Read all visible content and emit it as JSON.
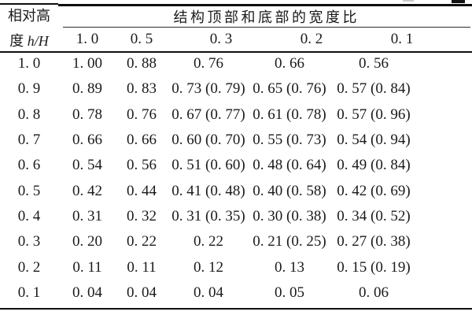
{
  "colors": {
    "background": "#ffffff",
    "text": "#1a1a1a",
    "rule": "#0e0e0e"
  },
  "table": {
    "corner_header": {
      "line1": "相对高",
      "line2_prefix": "度",
      "line2_math": "h/H"
    },
    "spanner": "结构顶部和底部的宽度比",
    "sub_headers": [
      "1. 0",
      "0. 5",
      "0. 3",
      "0. 2",
      "0. 1"
    ],
    "rows": [
      {
        "label": "1. 0",
        "values": [
          "1. 00",
          "0. 88",
          "0. 76",
          "0. 66",
          "0. 56"
        ]
      },
      {
        "label": "0. 9",
        "values": [
          "0. 89",
          "0. 83",
          "0. 73 (0. 79)",
          "0. 65 (0. 76)",
          "0. 57 (0. 84)"
        ]
      },
      {
        "label": "0. 8",
        "values": [
          "0. 78",
          "0. 76",
          "0. 67 (0. 77)",
          "0. 61 (0. 78)",
          "0. 57 (0. 96)"
        ]
      },
      {
        "label": "0. 7",
        "values": [
          "0. 66",
          "0. 66",
          "0. 60 (0. 70)",
          "0. 55 (0. 73)",
          "0. 54 (0. 94)"
        ]
      },
      {
        "label": "0. 6",
        "values": [
          "0. 54",
          "0. 56",
          "0. 51 (0. 60)",
          "0. 48 (0. 64)",
          "0. 49 (0. 84)"
        ]
      },
      {
        "label": "0. 5",
        "values": [
          "0. 42",
          "0. 44",
          "0. 41 (0. 48)",
          "0. 40 (0. 58)",
          "0. 42 (0. 69)"
        ]
      },
      {
        "label": "0. 4",
        "values": [
          "0. 31",
          "0. 32",
          "0. 31 (0. 35)",
          "0. 30 (0. 38)",
          "0. 34 (0. 52)"
        ]
      },
      {
        "label": "0. 3",
        "values": [
          "0. 20",
          "0. 22",
          "0. 22",
          "0. 21 (0. 25)",
          "0. 27 (0. 38)"
        ]
      },
      {
        "label": "0. 2",
        "values": [
          "0. 11",
          "0. 11",
          "0. 12",
          "0. 13",
          "0. 15 (0. 19)"
        ]
      },
      {
        "label": "0. 1",
        "values": [
          "0. 04",
          "0. 04",
          "0. 04",
          "0. 05",
          "0. 06"
        ]
      }
    ]
  }
}
